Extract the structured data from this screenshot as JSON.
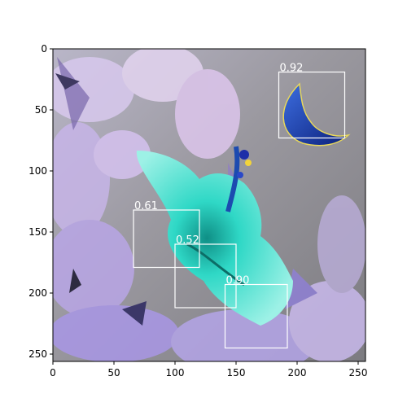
{
  "axes": {
    "x_ticks": [
      "0",
      "50",
      "100",
      "150",
      "200",
      "250"
    ],
    "y_ticks": [
      "0",
      "50",
      "100",
      "150",
      "200",
      "250"
    ],
    "xlim": [
      0,
      256
    ],
    "ylim": [
      256,
      0
    ]
  },
  "detections": [
    {
      "score": "0.92",
      "x0": 185,
      "y0": 19,
      "x1": 239,
      "y1": 73
    },
    {
      "score": "0.61",
      "x0": 66,
      "y0": 132,
      "x1": 120,
      "y1": 179
    },
    {
      "score": "0.52",
      "x0": 100,
      "y0": 160,
      "x1": 150,
      "y1": 212
    },
    {
      "score": "0.90",
      "x0": 141,
      "y0": 193,
      "x1": 192,
      "y1": 245
    }
  ],
  "colors": {
    "box": "#ffffff",
    "background": "#8f8f93",
    "leaves": "#c6b3e6",
    "flower": "#2fd8c6",
    "moon": "#1f3fae"
  }
}
